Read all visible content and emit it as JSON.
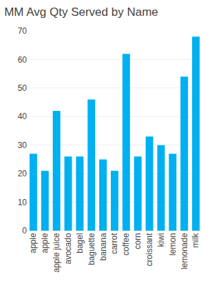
{
  "chart_data": {
    "type": "bar",
    "title": "MM Avg Qty Served by Name",
    "categories": [
      "apple",
      "apple",
      "apple juice",
      "avocado",
      "bagel",
      "baguette",
      "banana",
      "carrot",
      "coffee",
      "corn",
      "croissant",
      "kiwi",
      "lemon",
      "lemonade",
      "milk"
    ],
    "values": [
      27,
      21,
      42,
      26,
      26,
      46,
      25,
      21,
      62,
      26,
      33,
      30,
      27,
      54,
      68
    ],
    "color": "#00B0F0",
    "ylim": [
      0,
      70
    ],
    "yticks": [
      0,
      10,
      20,
      30,
      40,
      50,
      60,
      70
    ],
    "grid": true
  }
}
